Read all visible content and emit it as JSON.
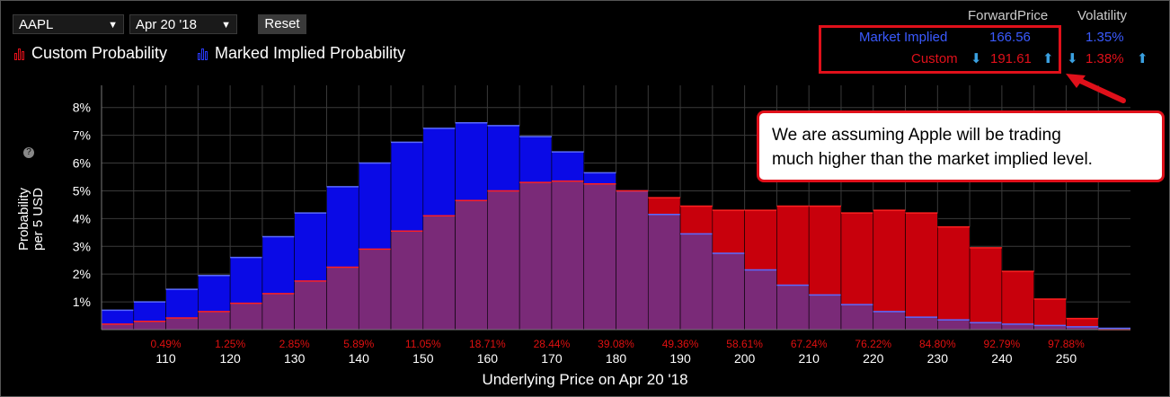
{
  "controls": {
    "symbol": "AAPL",
    "date": "Apr 20 '18",
    "reset_label": "Reset"
  },
  "legend": {
    "custom": "Custom Probability",
    "market": "Marked Implied Probability"
  },
  "metrics": {
    "forward_header": "ForwardPrice",
    "vol_header": "Volatility",
    "market_label": "Market Implied",
    "market_forward": "166.56",
    "market_vol": "1.35%",
    "custom_label": "Custom",
    "custom_forward": "191.61",
    "custom_vol": "1.38%"
  },
  "callout": {
    "line1": "We are assuming Apple will be trading",
    "line2": "much higher than the market implied level."
  },
  "colors": {
    "market": "#0a0ae6",
    "custom": "#c8000c",
    "overlap": "#7a2a78",
    "cum_label": "#e01010",
    "callout_border": "#e0101a"
  },
  "chart_data": {
    "type": "bar",
    "ylabel": "Probability per 5 USD",
    "ylabel_lines": [
      "Probability",
      "per 5 USD"
    ],
    "xlabel": "Underlying Price on Apr 20 '18",
    "ylim": [
      0,
      8.8
    ],
    "yticks": [
      "1%",
      "2%",
      "3%",
      "4%",
      "5%",
      "6%",
      "7%",
      "8%"
    ],
    "xlim": [
      100,
      260
    ],
    "xticks": [
      110,
      120,
      130,
      140,
      150,
      160,
      170,
      180,
      190,
      200,
      210,
      220,
      230,
      240,
      250
    ],
    "cumulative_labels": [
      "0.49%",
      "1.25%",
      "2.85%",
      "5.89%",
      "11.05%",
      "18.71%",
      "28.44%",
      "39.08%",
      "49.36%",
      "58.61%",
      "67.24%",
      "76.22%",
      "84.80%",
      "92.79%",
      "97.88%"
    ],
    "bins_left": [
      100,
      105,
      110,
      115,
      120,
      125,
      130,
      135,
      140,
      145,
      150,
      155,
      160,
      165,
      170,
      175,
      180,
      185,
      190,
      195,
      200,
      205,
      210,
      215,
      220,
      225,
      230,
      235,
      240,
      245,
      250,
      255
    ],
    "bin_width": 5,
    "grid": true,
    "series": [
      {
        "name": "Marked Implied Probability",
        "values": [
          0.7,
          1.0,
          1.45,
          1.95,
          2.6,
          3.35,
          4.2,
          5.15,
          6.0,
          6.75,
          7.25,
          7.45,
          7.35,
          6.95,
          6.4,
          5.65,
          5.0,
          4.15,
          3.45,
          2.75,
          2.15,
          1.6,
          1.25,
          0.9,
          0.65,
          0.45,
          0.35,
          0.25,
          0.2,
          0.15,
          0.1,
          0.05
        ]
      },
      {
        "name": "Custom Probability",
        "values": [
          0.2,
          0.3,
          0.42,
          0.65,
          0.95,
          1.3,
          1.75,
          2.25,
          2.9,
          3.55,
          4.1,
          4.65,
          5.0,
          5.3,
          5.35,
          5.25,
          5.0,
          4.75,
          4.45,
          4.3,
          4.3,
          4.45,
          4.45,
          4.2,
          4.3,
          4.2,
          3.7,
          2.95,
          2.1,
          1.1,
          0.4,
          0.0
        ]
      }
    ]
  }
}
